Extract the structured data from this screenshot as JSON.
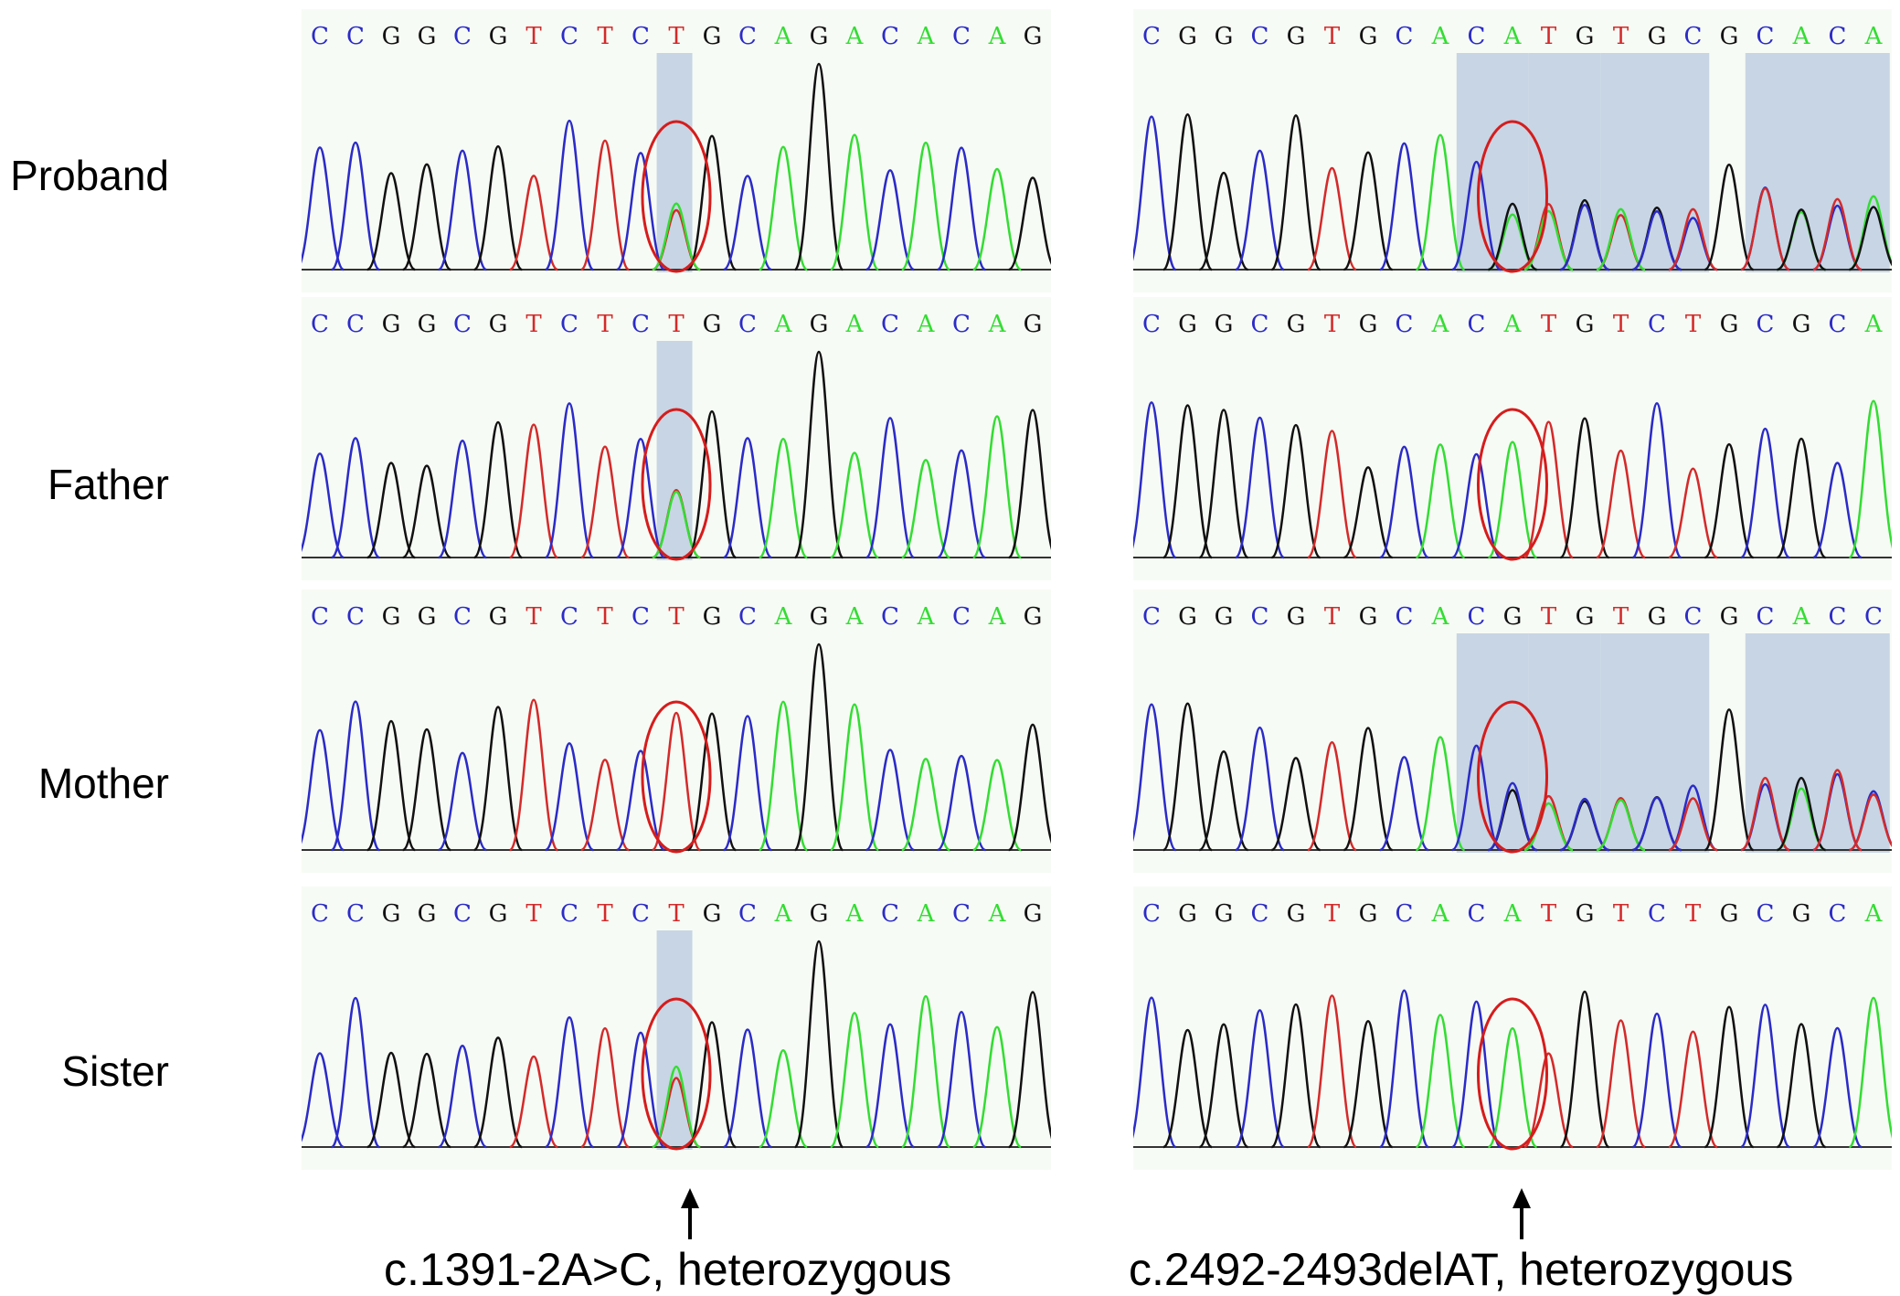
{
  "colors": {
    "A": "#33dd33",
    "C": "#2b2bc8",
    "G": "#111111",
    "T": "#d42a2a",
    "circle": "#d61c1c",
    "shade": "#b7c8dd"
  },
  "rows": [
    {
      "label": "Proband",
      "left": {
        "sequence": "CCGGCGTCTCTGCAGACACAG",
        "shaded": [
          [
            10,
            10
          ]
        ],
        "circled": 10,
        "mixed": [
          10
        ]
      },
      "right": {
        "sequence": "CGGCGTGCACATGTGCGCACA",
        "shaded": [
          [
            9,
            10
          ],
          [
            11,
            12
          ],
          [
            13,
            15
          ],
          [
            17,
            20
          ]
        ],
        "circled": 10,
        "mixed": [
          10,
          11,
          12,
          13,
          14,
          15,
          17,
          18,
          19,
          20
        ]
      }
    },
    {
      "label": "Father",
      "left": {
        "sequence": "CCGGCGTCTCTGCAGACACAG",
        "shaded": [
          [
            10,
            10
          ]
        ],
        "circled": 10,
        "mixed": [
          10
        ]
      },
      "right": {
        "sequence": "CGGCGTGCACATGTCTGCGCA",
        "shaded": [],
        "circled": 10,
        "mixed": []
      }
    },
    {
      "label": "Mother",
      "left": {
        "sequence": "CCGGCGTCTCTGCAGACACAG",
        "shaded": [],
        "circled": 10,
        "mixed": []
      },
      "right": {
        "sequence": "CGGCGTGCACGTGTGCGCACC",
        "shaded": [
          [
            9,
            10
          ],
          [
            11,
            12
          ],
          [
            13,
            15
          ],
          [
            17,
            20
          ]
        ],
        "circled": 10,
        "mixed": [
          10,
          11,
          12,
          13,
          14,
          15,
          17,
          18,
          19,
          20
        ]
      }
    },
    {
      "label": "Sister",
      "left": {
        "sequence": "CCGGCGTCTCTGCAGACACAG",
        "shaded": [
          [
            10,
            10
          ]
        ],
        "circled": 10,
        "mixed": [
          10
        ]
      },
      "right": {
        "sequence": "CGGCGTGCACATGTCTGCGCA",
        "shaded": [],
        "circled": 10,
        "mixed": []
      }
    }
  ],
  "captions": {
    "left": "c.1391-2A>C, heterozygous",
    "right": "c.2492-2493delAT, heterozygous"
  }
}
